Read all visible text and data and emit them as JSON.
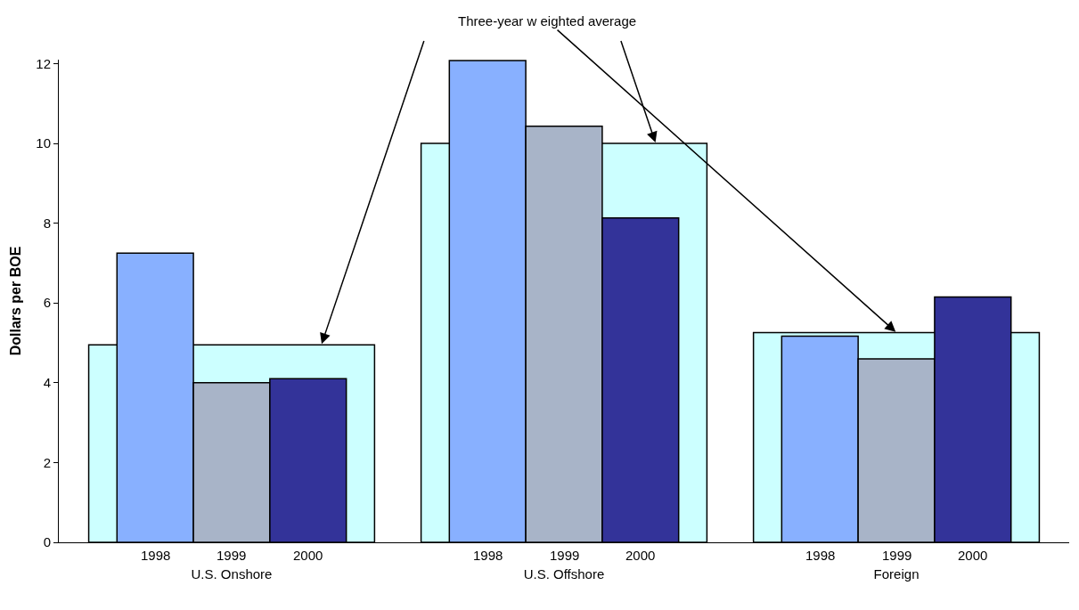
{
  "chart_data": {
    "type": "bar",
    "ylabel": "Dollars per BOE",
    "categories": [
      "U.S. Onshore",
      "U.S. Offshore",
      "Foreign"
    ],
    "series": [
      {
        "color": "#ccffff",
        "values": [
          4.95,
          10.0,
          5.26
        ]
      },
      {
        "name": "1998",
        "color": "#88b0ff",
        "values": [
          7.25,
          12.08,
          5.17
        ]
      },
      {
        "name": "1999",
        "color": "#a8b4c8",
        "values": [
          4.0,
          10.43,
          4.6
        ]
      },
      {
        "name": "2000",
        "color": "#333399",
        "values": [
          4.1,
          8.13,
          6.15
        ]
      }
    ],
    "ylim": [
      0,
      12.1
    ],
    "yticks": [
      0,
      2,
      4,
      6,
      8,
      10,
      12
    ],
    "legend": false,
    "annotations": [
      {
        "text": "Three-year w eighted average",
        "x": "Foreign",
        "y": 5.26
      }
    ]
  }
}
